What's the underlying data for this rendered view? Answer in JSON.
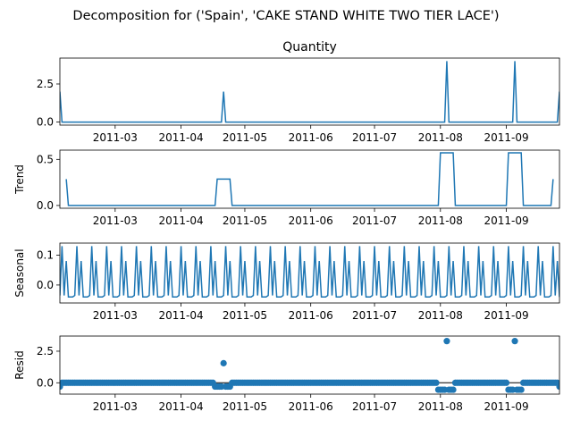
{
  "suptitle": "Decomposition for ('Spain', 'CAKE STAND WHITE TWO TIER LACE')",
  "colors": {
    "series": "#1f77b4",
    "axis": "#000000",
    "background": "#ffffff"
  },
  "x_axis": {
    "start": "2011-02-03",
    "end": "2011-09-26",
    "ticks": [
      "2011-03-01",
      "2011-04-01",
      "2011-05-01",
      "2011-06-01",
      "2011-07-01",
      "2011-08-01",
      "2011-09-01"
    ],
    "tick_labels": [
      "2011-03",
      "2011-04",
      "2011-05",
      "2011-06",
      "2011-07",
      "2011-08",
      "2011-09"
    ]
  },
  "chart_data": [
    {
      "type": "line",
      "title": "Quantity",
      "ylabel": "",
      "ylim": [
        -0.2,
        4.2
      ],
      "yticks": [
        0.0,
        2.5
      ],
      "ytick_labels": [
        "0.0",
        "2.5"
      ],
      "baseline": 0,
      "points": [
        {
          "x": "2011-02-03",
          "y": 2
        },
        {
          "x": "2011-02-04",
          "y": 0
        },
        {
          "x": "2011-04-20",
          "y": 0
        },
        {
          "x": "2011-04-21",
          "y": 2
        },
        {
          "x": "2011-04-22",
          "y": 0
        },
        {
          "x": "2011-08-03",
          "y": 0
        },
        {
          "x": "2011-08-04",
          "y": 4
        },
        {
          "x": "2011-08-05",
          "y": 0
        },
        {
          "x": "2011-09-04",
          "y": 0
        },
        {
          "x": "2011-09-05",
          "y": 4
        },
        {
          "x": "2011-09-06",
          "y": 0
        },
        {
          "x": "2011-09-25",
          "y": 0
        },
        {
          "x": "2011-09-26",
          "y": 2
        }
      ]
    },
    {
      "type": "line",
      "title": "",
      "ylabel": "Trend",
      "ylim": [
        -0.03,
        0.6
      ],
      "yticks": [
        0.0,
        0.5
      ],
      "ytick_labels": [
        "0.0",
        "0.5"
      ],
      "segments": [
        [
          {
            "x": "2011-02-06",
            "y": 0.286
          },
          {
            "x": "2011-02-07",
            "y": 0
          },
          {
            "x": "2011-04-17",
            "y": 0
          },
          {
            "x": "2011-04-18",
            "y": 0.286
          },
          {
            "x": "2011-04-24",
            "y": 0.286
          },
          {
            "x": "2011-04-25",
            "y": 0
          },
          {
            "x": "2011-07-31",
            "y": 0
          },
          {
            "x": "2011-08-01",
            "y": 0.571
          },
          {
            "x": "2011-08-07",
            "y": 0.571
          },
          {
            "x": "2011-08-08",
            "y": 0
          },
          {
            "x": "2011-09-01",
            "y": 0
          },
          {
            "x": "2011-09-02",
            "y": 0.571
          },
          {
            "x": "2011-09-08",
            "y": 0.571
          },
          {
            "x": "2011-09-09",
            "y": 0
          },
          {
            "x": "2011-09-22",
            "y": 0
          },
          {
            "x": "2011-09-23",
            "y": 0.286
          }
        ]
      ]
    },
    {
      "type": "line",
      "title": "",
      "ylabel": "Seasonal",
      "ylim": [
        -0.06,
        0.14
      ],
      "yticks": [
        0.0,
        0.1
      ],
      "ytick_labels": [
        "0.0",
        "0.1"
      ],
      "period_days": 7,
      "pattern": [
        -0.035,
        0.13,
        -0.035,
        0.08,
        -0.04,
        -0.04,
        -0.04
      ],
      "pattern_start": "2011-02-03"
    },
    {
      "type": "scatter",
      "title": "",
      "ylabel": "Resid",
      "ylim": [
        -0.9,
        3.7
      ],
      "yticks": [
        0.0,
        2.5
      ],
      "ytick_labels": [
        "0.0",
        "2.5"
      ],
      "zero_line": true,
      "default_value": 0,
      "step_days": 1,
      "overrides": [
        {
          "x": "2011-02-03",
          "y": -0.3
        },
        {
          "x": "2011-04-17",
          "y": -0.3
        },
        {
          "x": "2011-04-18",
          "y": -0.3
        },
        {
          "x": "2011-04-19",
          "y": -0.3
        },
        {
          "x": "2011-04-20",
          "y": -0.3
        },
        {
          "x": "2011-04-21",
          "y": 1.55
        },
        {
          "x": "2011-04-22",
          "y": -0.3
        },
        {
          "x": "2011-04-23",
          "y": -0.3
        },
        {
          "x": "2011-04-24",
          "y": -0.3
        },
        {
          "x": "2011-07-31",
          "y": -0.55
        },
        {
          "x": "2011-08-01",
          "y": -0.55
        },
        {
          "x": "2011-08-02",
          "y": -0.55
        },
        {
          "x": "2011-08-03",
          "y": -0.55
        },
        {
          "x": "2011-08-04",
          "y": 3.3
        },
        {
          "x": "2011-08-05",
          "y": -0.55
        },
        {
          "x": "2011-08-06",
          "y": -0.55
        },
        {
          "x": "2011-08-07",
          "y": -0.55
        },
        {
          "x": "2011-09-02",
          "y": -0.55
        },
        {
          "x": "2011-09-03",
          "y": -0.55
        },
        {
          "x": "2011-09-04",
          "y": -0.55
        },
        {
          "x": "2011-09-05",
          "y": 3.3
        },
        {
          "x": "2011-09-06",
          "y": -0.55
        },
        {
          "x": "2011-09-07",
          "y": -0.55
        },
        {
          "x": "2011-09-08",
          "y": -0.55
        },
        {
          "x": "2011-09-26",
          "y": -0.3
        }
      ]
    }
  ]
}
